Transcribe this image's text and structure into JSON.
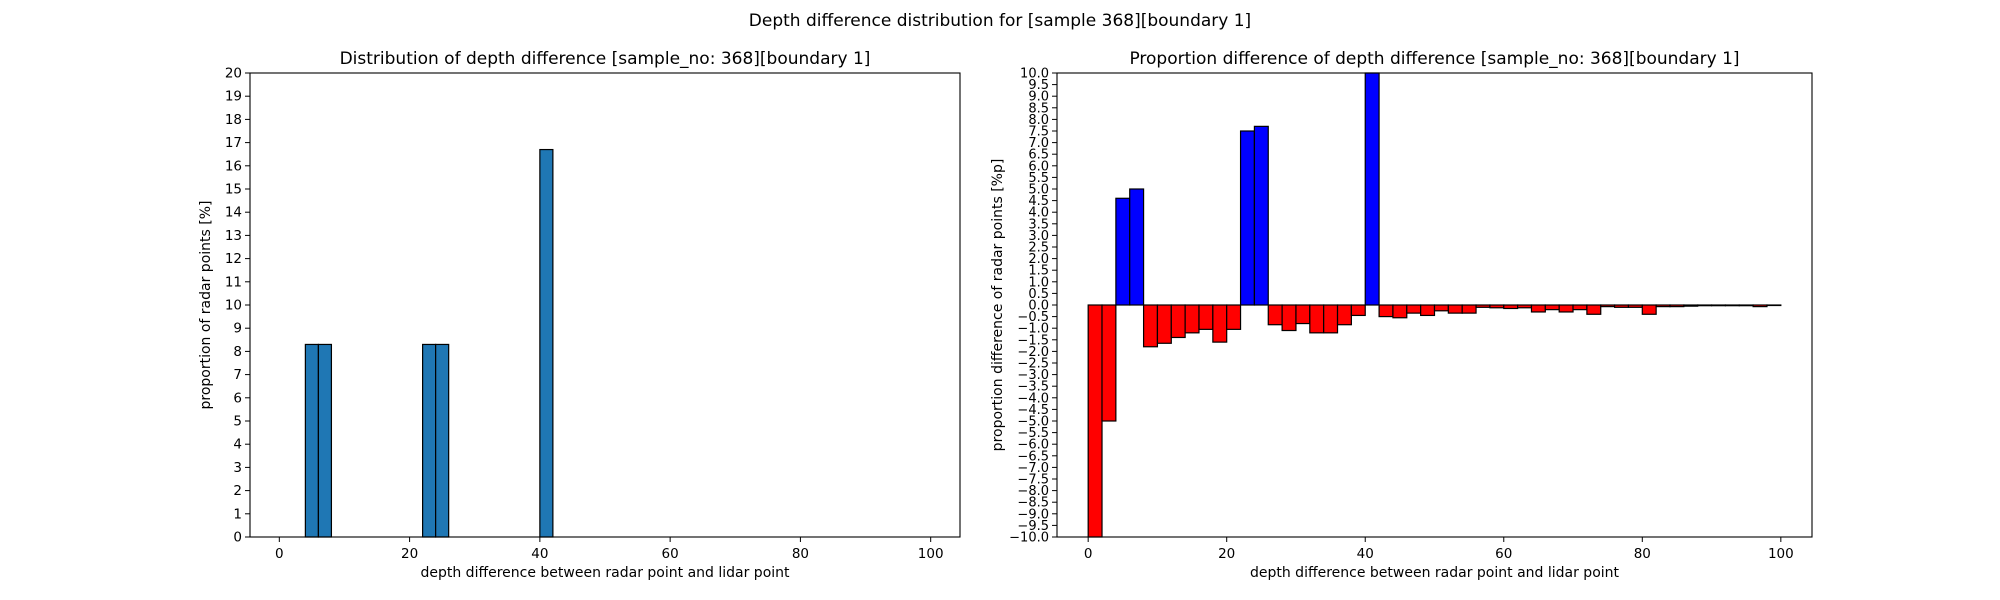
{
  "figure": {
    "suptitle": "Depth difference distribution for [sample 368][boundary 1]"
  },
  "chart_data": [
    {
      "type": "bar",
      "title": "Distribution of depth difference [sample_no: 368][boundary 1]",
      "xlabel": "depth difference between radar point and lidar point",
      "ylabel": "proportion of radar points [%]",
      "xlim": [
        -4.5,
        104.5
      ],
      "ylim": [
        0,
        20
      ],
      "xticks": [
        0,
        20,
        40,
        60,
        80,
        100
      ],
      "yticks": [
        0,
        1,
        2,
        3,
        4,
        5,
        6,
        7,
        8,
        9,
        10,
        11,
        12,
        13,
        14,
        15,
        16,
        17,
        18,
        19,
        20
      ],
      "bin_width": 2,
      "grid": false,
      "bar_color": "#1f77b4",
      "edge_color": "#000000",
      "bars": [
        {
          "x": 4,
          "value": 8.3
        },
        {
          "x": 6,
          "value": 8.3
        },
        {
          "x": 22,
          "value": 8.3
        },
        {
          "x": 24,
          "value": 8.3
        },
        {
          "x": 40,
          "value": 16.7
        }
      ]
    },
    {
      "type": "bar",
      "title": "Proportion difference of depth difference [sample_no: 368][boundary 1]",
      "xlabel": "depth difference between radar point and lidar point",
      "ylabel": "proportion difference of radar points [%p]",
      "xlim": [
        -4.5,
        104.5
      ],
      "ylim": [
        -10,
        10
      ],
      "xticks": [
        0,
        20,
        40,
        60,
        80,
        100
      ],
      "yticks": [
        -10.0,
        -9.5,
        -9.0,
        -8.5,
        -8.0,
        -7.5,
        -7.0,
        -6.5,
        -6.0,
        -5.5,
        -5.0,
        -4.5,
        -4.0,
        -3.5,
        -3.0,
        -2.5,
        -2.0,
        -1.5,
        -1.0,
        -0.5,
        0.0,
        0.5,
        1.0,
        1.5,
        2.0,
        2.5,
        3.0,
        3.5,
        4.0,
        4.5,
        5.0,
        5.5,
        6.0,
        6.5,
        7.0,
        7.5,
        8.0,
        8.5,
        9.0,
        9.5,
        10.0
      ],
      "bin_width": 2,
      "grid": false,
      "positive_color": "#0000ff",
      "negative_color": "#ff0000",
      "edge_color": "#000000",
      "bars": [
        {
          "x": 0,
          "value": -10.0
        },
        {
          "x": 2,
          "value": -5.0
        },
        {
          "x": 4,
          "value": 4.6
        },
        {
          "x": 6,
          "value": 5.0
        },
        {
          "x": 8,
          "value": -1.8
        },
        {
          "x": 10,
          "value": -1.65
        },
        {
          "x": 12,
          "value": -1.4
        },
        {
          "x": 14,
          "value": -1.2
        },
        {
          "x": 16,
          "value": -1.05
        },
        {
          "x": 18,
          "value": -1.6
        },
        {
          "x": 20,
          "value": -1.05
        },
        {
          "x": 22,
          "value": 7.5
        },
        {
          "x": 24,
          "value": 7.7
        },
        {
          "x": 26,
          "value": -0.85
        },
        {
          "x": 28,
          "value": -1.1
        },
        {
          "x": 30,
          "value": -0.8
        },
        {
          "x": 32,
          "value": -1.2
        },
        {
          "x": 34,
          "value": -1.2
        },
        {
          "x": 36,
          "value": -0.85
        },
        {
          "x": 38,
          "value": -0.45
        },
        {
          "x": 40,
          "value": 10.0
        },
        {
          "x": 42,
          "value": -0.5
        },
        {
          "x": 44,
          "value": -0.55
        },
        {
          "x": 46,
          "value": -0.35
        },
        {
          "x": 48,
          "value": -0.45
        },
        {
          "x": 50,
          "value": -0.25
        },
        {
          "x": 52,
          "value": -0.35
        },
        {
          "x": 54,
          "value": -0.35
        },
        {
          "x": 56,
          "value": -0.1
        },
        {
          "x": 58,
          "value": -0.12
        },
        {
          "x": 60,
          "value": -0.15
        },
        {
          "x": 62,
          "value": -0.12
        },
        {
          "x": 64,
          "value": -0.3
        },
        {
          "x": 66,
          "value": -0.2
        },
        {
          "x": 68,
          "value": -0.3
        },
        {
          "x": 70,
          "value": -0.2
        },
        {
          "x": 72,
          "value": -0.4
        },
        {
          "x": 74,
          "value": -0.07
        },
        {
          "x": 76,
          "value": -0.1
        },
        {
          "x": 78,
          "value": -0.1
        },
        {
          "x": 80,
          "value": -0.4
        },
        {
          "x": 82,
          "value": -0.07
        },
        {
          "x": 84,
          "value": -0.07
        },
        {
          "x": 86,
          "value": -0.05
        },
        {
          "x": 88,
          "value": -0.03
        },
        {
          "x": 90,
          "value": -0.03
        },
        {
          "x": 92,
          "value": -0.03
        },
        {
          "x": 94,
          "value": -0.03
        },
        {
          "x": 96,
          "value": -0.07
        },
        {
          "x": 98,
          "value": -0.02
        }
      ]
    }
  ]
}
